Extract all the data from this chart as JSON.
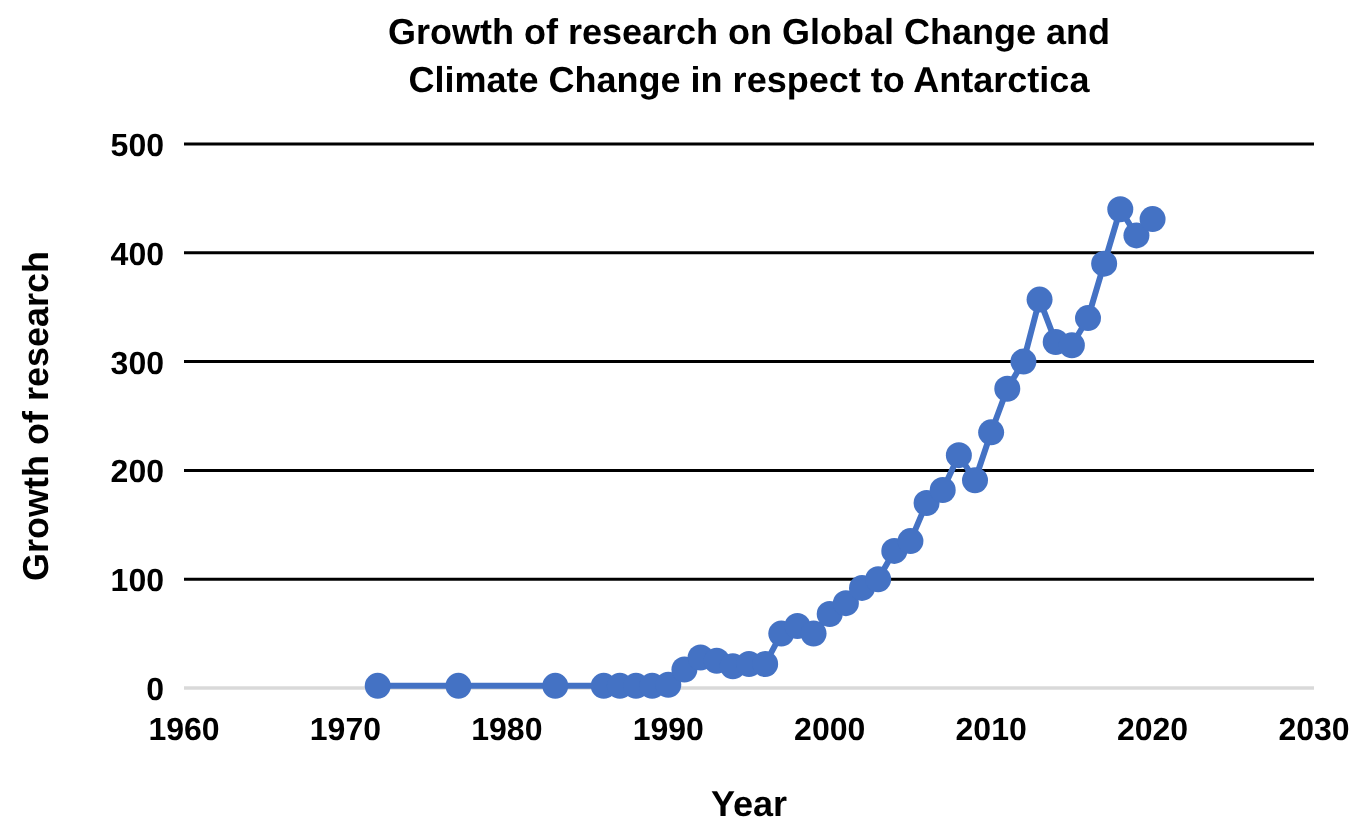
{
  "chart_data": {
    "type": "line",
    "title": "Growth of research on Global Change and Climate Change in respect to Antarctica",
    "xlabel": "Year",
    "ylabel": "Growth of research",
    "x": [
      1972,
      1977,
      1983,
      1986,
      1987,
      1988,
      1989,
      1990,
      1991,
      1992,
      1993,
      1994,
      1995,
      1996,
      1997,
      1998,
      1999,
      2000,
      2001,
      2002,
      2003,
      2004,
      2005,
      2006,
      2007,
      2008,
      2009,
      2010,
      2011,
      2012,
      2013,
      2014,
      2015,
      2016,
      2017,
      2018,
      2019,
      2020
    ],
    "series": [
      {
        "color": "#4472c4",
        "values": [
          2,
          2,
          2,
          2,
          2,
          2,
          2,
          3,
          17,
          28,
          25,
          20,
          22,
          22,
          50,
          57,
          50,
          68,
          78,
          92,
          100,
          126,
          135,
          170,
          182,
          214,
          191,
          235,
          275,
          300,
          357,
          318,
          315,
          340,
          390,
          440,
          416,
          431
        ]
      }
    ],
    "xlim": [
      1960,
      2030
    ],
    "xticks": [
      1960,
      1970,
      1980,
      1990,
      2000,
      2010,
      2020,
      2030
    ],
    "ylim": [
      0,
      500
    ],
    "yticks": [
      0,
      100,
      200,
      300,
      400,
      500
    ],
    "grid": "y",
    "marker": "circle",
    "line_style": "solid"
  }
}
